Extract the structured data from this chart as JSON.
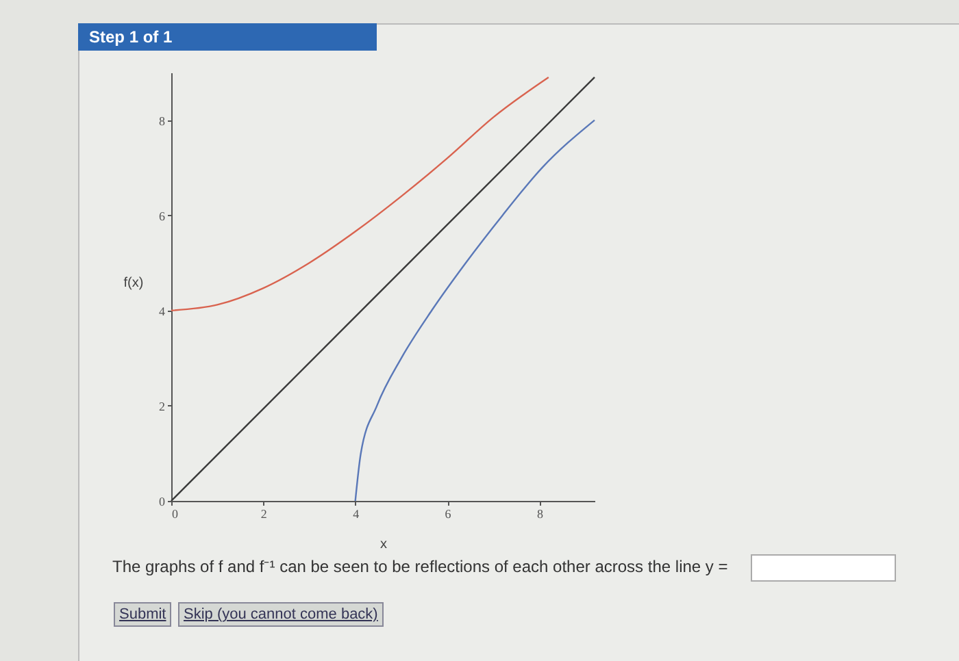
{
  "chart_data": {
    "type": "line",
    "xlabel": "x",
    "ylabel": "f(x)",
    "annotations": [
      "Step 1 of 1",
      "The graphs of f and f⁻¹ can be seen to be reflections of each other across the line y =",
      "Submit",
      "Skip (you cannot come back)"
    ],
    "series": [
      {
        "color": "#d9634f",
        "x": [
          0,
          1,
          2,
          3,
          4,
          5,
          6,
          7,
          8.2
        ],
        "values": [
          4,
          4.12,
          4.47,
          5,
          5.66,
          6.4,
          7.2,
          8.06,
          8.9
        ]
      },
      {
        "color": "#3a3a3a",
        "x": [
          0,
          9.2
        ],
        "values": [
          0,
          8.9
        ]
      },
      {
        "color": "#5a78b8",
        "x": [
          4,
          4.12,
          4.47,
          5,
          5.66,
          6.4,
          7.2,
          8.06,
          9.2
        ],
        "values": [
          0,
          1,
          2,
          3,
          4,
          5,
          6,
          7,
          8
        ]
      }
    ],
    "xlim": [
      0,
      9.2
    ],
    "ylim": [
      0,
      9
    ],
    "xticks": [
      0,
      2,
      4,
      6,
      8
    ],
    "yticks": [
      0,
      2,
      4,
      6,
      8
    ],
    "grid": false,
    "legend": false,
    "marker": "none",
    "line_style": "solid"
  }
}
